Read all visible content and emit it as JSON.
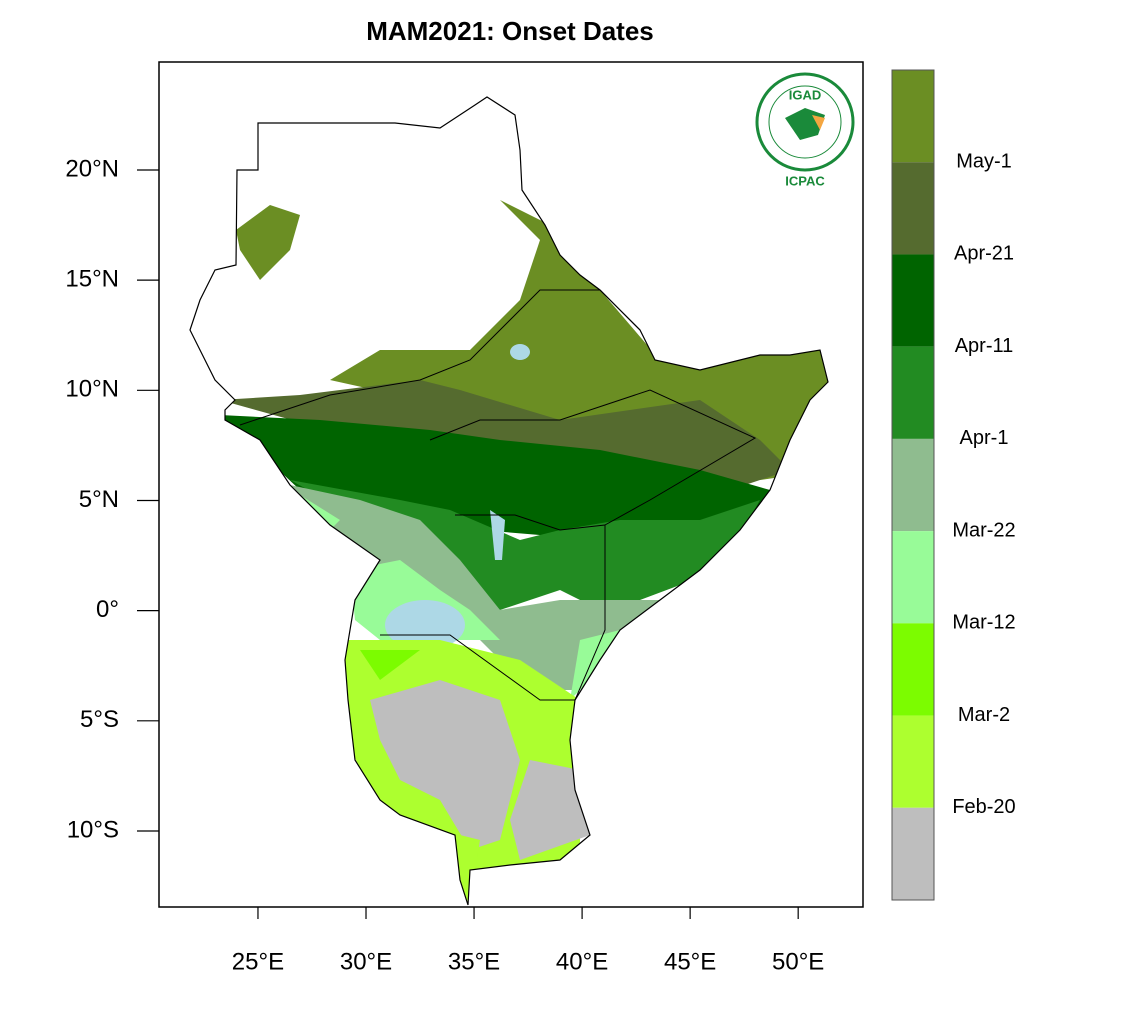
{
  "title": "MAM2021: Onset Dates",
  "map": {
    "xlim": [
      20.42,
      53.0
    ],
    "ylim": [
      -13.45,
      24.9
    ],
    "xticks": [
      {
        "value": 25,
        "label": "25°E"
      },
      {
        "value": 30,
        "label": "30°E"
      },
      {
        "value": 35,
        "label": "35°E"
      },
      {
        "value": 40,
        "label": "40°E"
      },
      {
        "value": 45,
        "label": "45°E"
      },
      {
        "value": 50,
        "label": "50°E"
      }
    ],
    "yticks": [
      {
        "value": 20,
        "label": "20°N"
      },
      {
        "value": 15,
        "label": "15°N"
      },
      {
        "value": 10,
        "label": "10°N"
      },
      {
        "value": 5,
        "label": "5°N"
      },
      {
        "value": 0,
        "label": "0°"
      },
      {
        "value": -5,
        "label": "5°S"
      },
      {
        "value": -10,
        "label": "10°S"
      }
    ]
  },
  "legend": {
    "colors": [
      "#6b8e23",
      "#556b2f",
      "#006400",
      "#228b22",
      "#8fbc8f",
      "#98fb98",
      "#7cfc00",
      "#adff2f",
      "#bebebe"
    ],
    "labels": [
      "May-1",
      "Apr-21",
      "Apr-11",
      "Apr-1",
      "Mar-22",
      "Mar-12",
      "Mar-2",
      "Feb-20"
    ]
  },
  "logo": {
    "top": "IGAD",
    "bottom": "ICPAC"
  }
}
